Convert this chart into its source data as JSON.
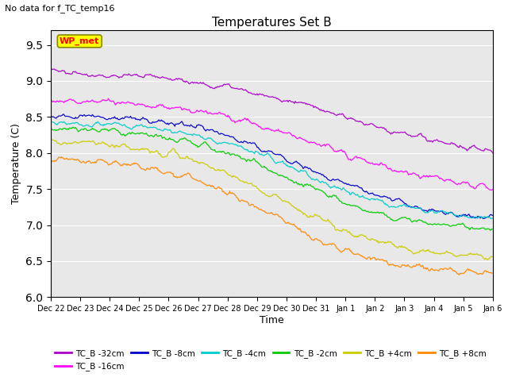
{
  "title": "Temperatures Set B",
  "subtitle": "No data for f_TC_temp16",
  "ylabel": "Temperature (C)",
  "xlabel": "Time",
  "ylim": [
    6.0,
    9.7
  ],
  "xlim": [
    0,
    15
  ],
  "wp_met_label": "WP_met",
  "n_points": 500,
  "total_days": 15,
  "background_color": "#e8e8e8",
  "series_params": [
    {
      "name": "TC_B -32cm",
      "color": "#aa00cc",
      "start": 9.15,
      "end": 7.82,
      "noise": 0.055,
      "mid": 0.68,
      "steep": 5.5,
      "seed": 0
    },
    {
      "name": "TC_B -16cm",
      "color": "#ff00ff",
      "start": 8.75,
      "end": 7.42,
      "noise": 0.06,
      "mid": 0.62,
      "steep": 6.5,
      "seed": 1
    },
    {
      "name": "TC_B -8cm",
      "color": "#0000cc",
      "start": 8.55,
      "end": 7.05,
      "noise": 0.055,
      "mid": 0.58,
      "steep": 7.5,
      "seed": 2
    },
    {
      "name": "TC_B -4cm",
      "color": "#00cccc",
      "start": 8.45,
      "end": 7.05,
      "noise": 0.055,
      "mid": 0.56,
      "steep": 7.5,
      "seed": 3
    },
    {
      "name": "TC_B -2cm",
      "color": "#00cc00",
      "start": 8.35,
      "end": 6.92,
      "noise": 0.06,
      "mid": 0.54,
      "steep": 8.0,
      "seed": 4
    },
    {
      "name": "TC_B +4cm",
      "color": "#cccc00",
      "start": 8.18,
      "end": 6.52,
      "noise": 0.065,
      "mid": 0.52,
      "steep": 8.0,
      "seed": 5
    },
    {
      "name": "TC_B +8cm",
      "color": "#ff8800",
      "start": 7.93,
      "end": 6.33,
      "noise": 0.07,
      "mid": 0.5,
      "steep": 8.5,
      "seed": 6
    }
  ],
  "tick_labels": [
    "Dec 22",
    "Dec 23",
    "Dec 24",
    "Dec 25",
    "Dec 26",
    "Dec 27",
    "Dec 28",
    "Dec 29",
    "Dec 30",
    "Dec 31",
    "Jan 1",
    "Jan 2",
    "Jan 3",
    "Jan 4",
    "Jan 5",
    "Jan 6"
  ],
  "legend_row1": [
    {
      "name": "TC_B -32cm",
      "color": "#aa00cc"
    },
    {
      "name": "TC_B -16cm",
      "color": "#ff00ff"
    },
    {
      "name": "TC_B -8cm",
      "color": "#0000cc"
    },
    {
      "name": "TC_B -4cm",
      "color": "#00cccc"
    },
    {
      "name": "TC_B -2cm",
      "color": "#00cc00"
    },
    {
      "name": "TC_B +4cm",
      "color": "#cccc00"
    }
  ],
  "legend_row2": [
    {
      "name": "TC_B +8cm",
      "color": "#ff8800"
    }
  ]
}
